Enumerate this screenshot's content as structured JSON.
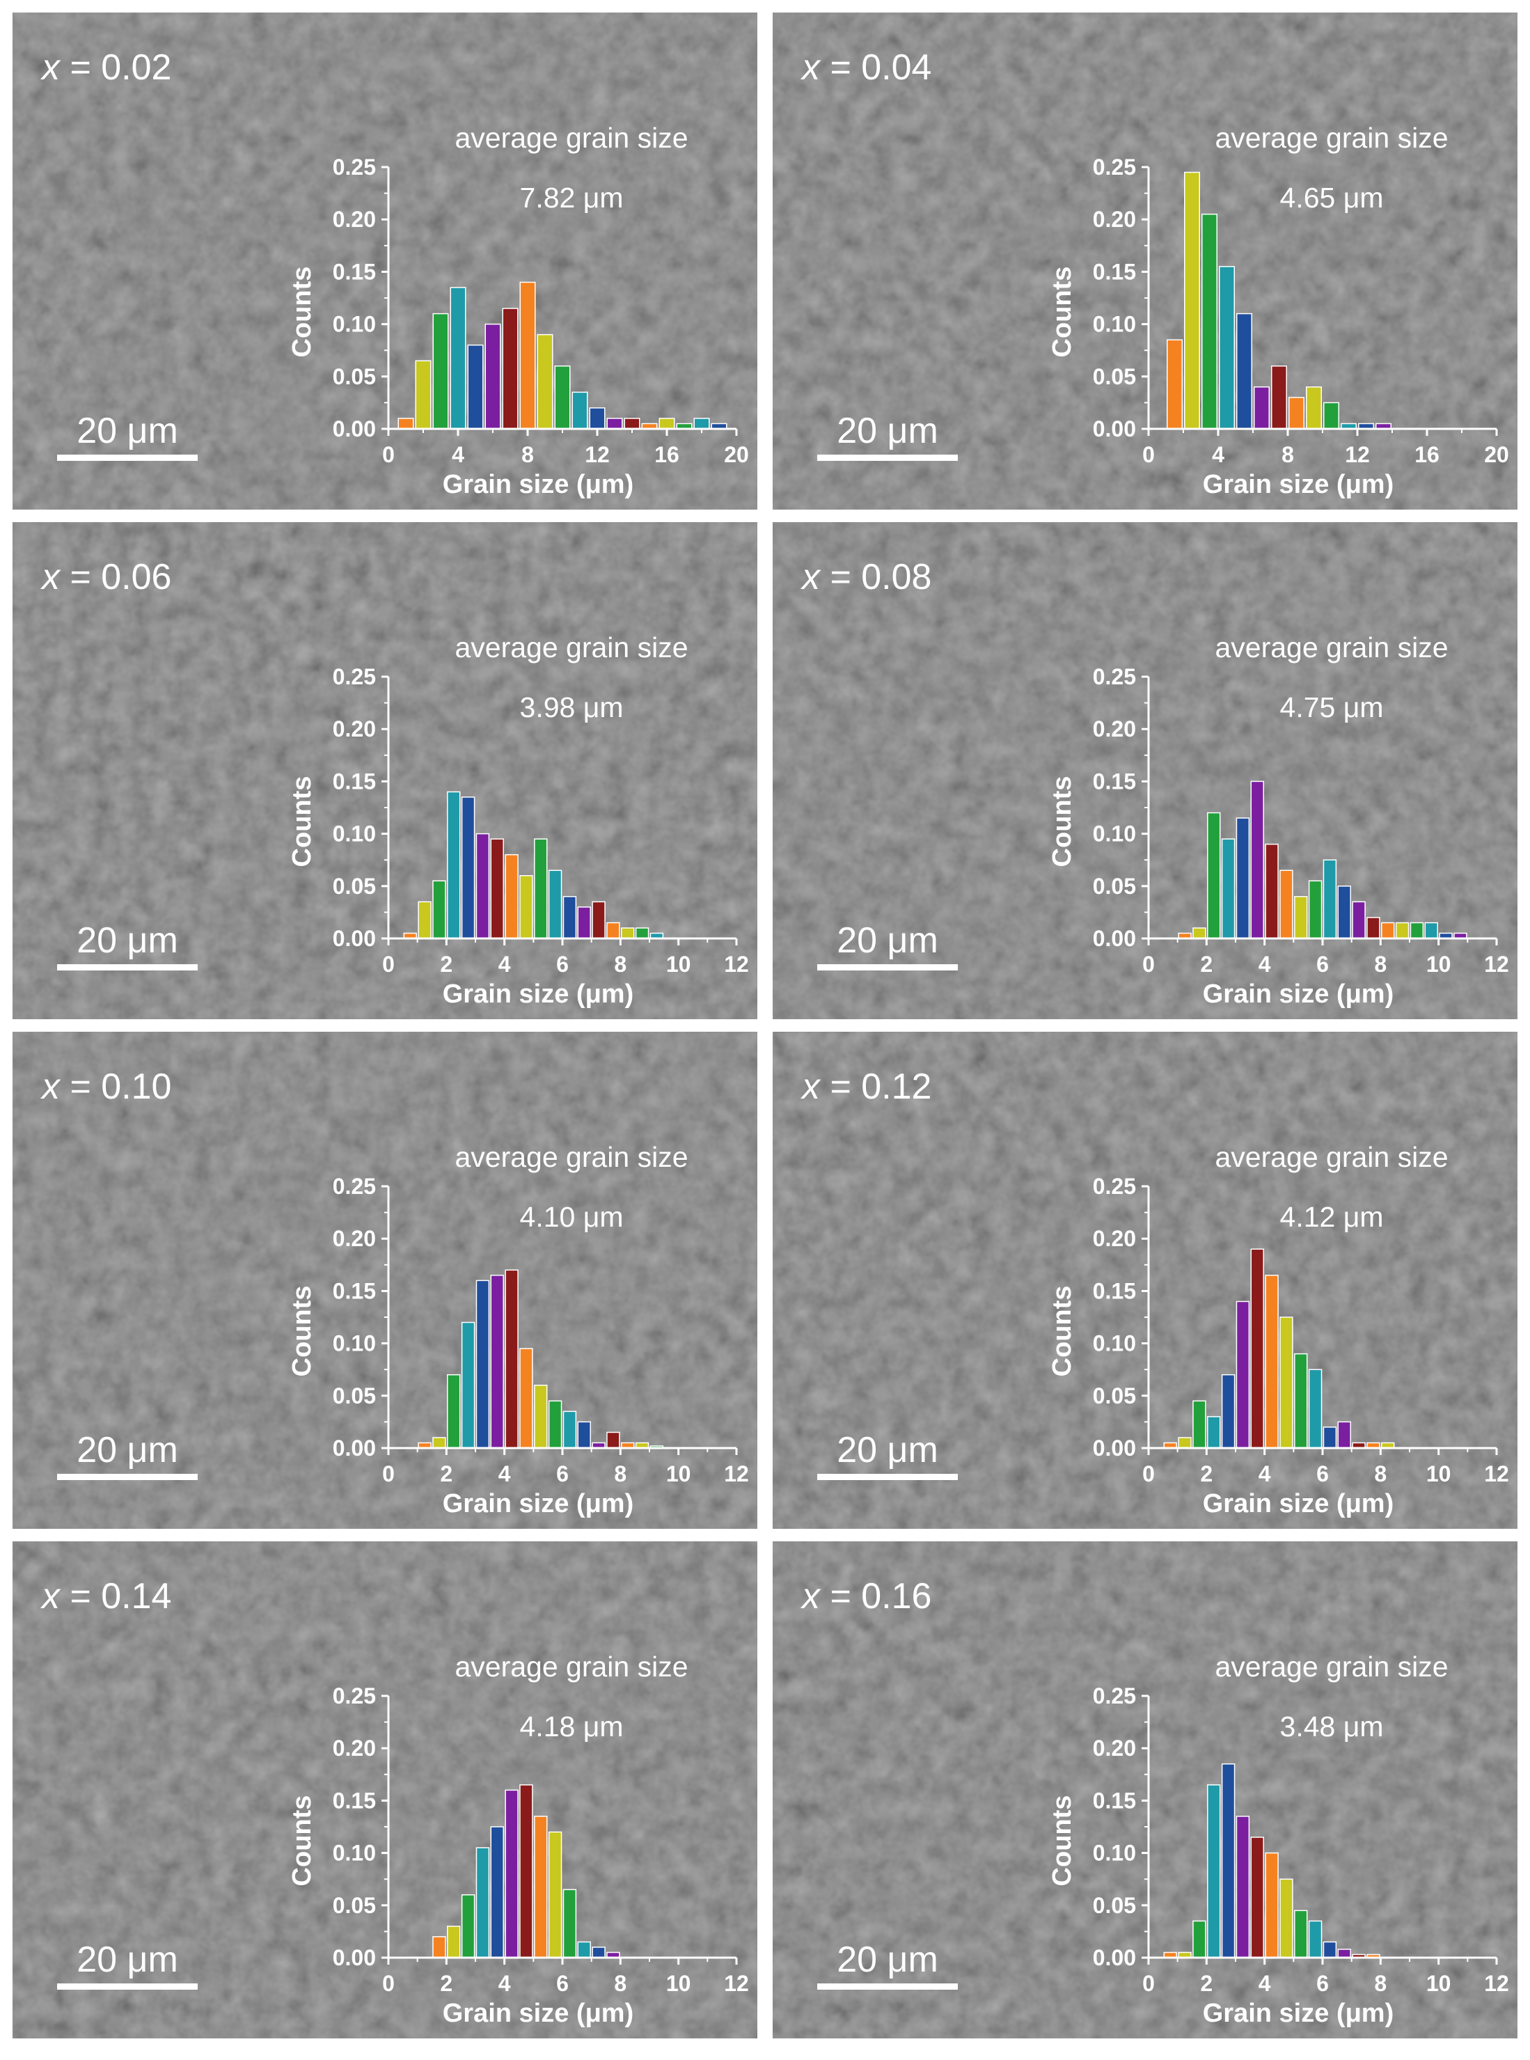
{
  "palette": [
    "#f58220",
    "#c8c81e",
    "#22a03c",
    "#1f9aa8",
    "#1f4e9c",
    "#7b1fa0",
    "#8b1a1a"
  ],
  "scale_bar_label": "20 μm",
  "chart_data": [
    {
      "type": "bar",
      "panel_label": {
        "var": "x",
        "eq": " = 0.02"
      },
      "annotation": {
        "line1": "average grain size",
        "line2": "7.82 μm"
      },
      "xlabel": "Grain size (μm)",
      "ylabel": "Counts",
      "xlim": [
        0,
        20
      ],
      "ylim": [
        0,
        0.25
      ],
      "xticks": [
        "0",
        "4",
        "8",
        "12",
        "16",
        "20"
      ],
      "yticks": [
        "0.00",
        "0.05",
        "0.10",
        "0.15",
        "0.20",
        "0.25"
      ],
      "bin_width": 1,
      "x": [
        1,
        2,
        3,
        4,
        5,
        6,
        7,
        8,
        9,
        10,
        11,
        12,
        13,
        14,
        15,
        16,
        17,
        18,
        19
      ],
      "values": [
        0.01,
        0.065,
        0.11,
        0.135,
        0.08,
        0.1,
        0.115,
        0.14,
        0.09,
        0.06,
        0.035,
        0.02,
        0.01,
        0.01,
        0.005,
        0.01,
        0.005,
        0.01,
        0.005
      ]
    },
    {
      "type": "bar",
      "panel_label": {
        "var": "x",
        "eq": " = 0.04"
      },
      "annotation": {
        "line1": "average grain size",
        "line2": "4.65 μm"
      },
      "xlabel": "Grain size (μm)",
      "ylabel": "Counts",
      "xlim": [
        0,
        20
      ],
      "ylim": [
        0,
        0.25
      ],
      "xticks": [
        "0",
        "4",
        "8",
        "12",
        "16",
        "20"
      ],
      "yticks": [
        "0.00",
        "0.05",
        "0.10",
        "0.15",
        "0.20",
        "0.25"
      ],
      "bin_width": 1,
      "x": [
        1.5,
        2.5,
        3.5,
        4.5,
        5.5,
        6.5,
        7.5,
        8.5,
        9.5,
        10.5,
        11.5,
        12.5,
        13.5
      ],
      "values": [
        0.085,
        0.245,
        0.205,
        0.155,
        0.11,
        0.04,
        0.06,
        0.03,
        0.04,
        0.025,
        0.005,
        0.005,
        0.005
      ]
    },
    {
      "type": "bar",
      "panel_label": {
        "var": "x",
        "eq": " = 0.06"
      },
      "annotation": {
        "line1": "average grain size",
        "line2": "3.98 μm"
      },
      "xlabel": "Grain size (μm)",
      "ylabel": "Counts",
      "xlim": [
        0,
        12
      ],
      "ylim": [
        0,
        0.25
      ],
      "xticks": [
        "0",
        "2",
        "4",
        "6",
        "8",
        "10",
        "12"
      ],
      "yticks": [
        "0.00",
        "0.05",
        "0.10",
        "0.15",
        "0.20",
        "0.25"
      ],
      "bin_width": 0.5,
      "x": [
        0.75,
        1.25,
        1.75,
        2.25,
        2.75,
        3.25,
        3.75,
        4.25,
        4.75,
        5.25,
        5.75,
        6.25,
        6.75,
        7.25,
        7.75,
        8.25,
        8.75,
        9.25
      ],
      "values": [
        0.005,
        0.035,
        0.055,
        0.14,
        0.135,
        0.1,
        0.095,
        0.08,
        0.06,
        0.095,
        0.065,
        0.04,
        0.03,
        0.035,
        0.015,
        0.01,
        0.01,
        0.005
      ]
    },
    {
      "type": "bar",
      "panel_label": {
        "var": "x",
        "eq": " = 0.08"
      },
      "annotation": {
        "line1": "average grain size",
        "line2": "4.75 μm"
      },
      "xlabel": "Grain size (μm)",
      "ylabel": "Counts",
      "xlim": [
        0,
        12
      ],
      "ylim": [
        0,
        0.25
      ],
      "xticks": [
        "0",
        "2",
        "4",
        "6",
        "8",
        "10",
        "12"
      ],
      "yticks": [
        "0.00",
        "0.05",
        "0.10",
        "0.15",
        "0.20",
        "0.25"
      ],
      "bin_width": 0.5,
      "x": [
        1.25,
        1.75,
        2.25,
        2.75,
        3.25,
        3.75,
        4.25,
        4.75,
        5.25,
        5.75,
        6.25,
        6.75,
        7.25,
        7.75,
        8.25,
        8.75,
        9.25,
        9.75,
        10.25,
        10.75
      ],
      "values": [
        0.005,
        0.01,
        0.12,
        0.095,
        0.115,
        0.15,
        0.09,
        0.065,
        0.04,
        0.055,
        0.075,
        0.05,
        0.035,
        0.02,
        0.015,
        0.015,
        0.015,
        0.015,
        0.005,
        0.005
      ]
    },
    {
      "type": "bar",
      "panel_label": {
        "var": "x",
        "eq": " = 0.10"
      },
      "annotation": {
        "line1": "average grain size",
        "line2": "4.10 μm"
      },
      "xlabel": "Grain size (μm)",
      "ylabel": "Counts",
      "xlim": [
        0,
        12
      ],
      "ylim": [
        0,
        0.25
      ],
      "xticks": [
        "0",
        "2",
        "4",
        "6",
        "8",
        "10",
        "12"
      ],
      "yticks": [
        "0.00",
        "0.05",
        "0.10",
        "0.15",
        "0.20",
        "0.25"
      ],
      "bin_width": 0.5,
      "x": [
        1.25,
        1.75,
        2.25,
        2.75,
        3.25,
        3.75,
        4.25,
        4.75,
        5.25,
        5.75,
        6.25,
        6.75,
        7.25,
        7.75,
        8.25,
        8.75,
        9.25
      ],
      "values": [
        0.005,
        0.01,
        0.07,
        0.12,
        0.16,
        0.165,
        0.17,
        0.095,
        0.06,
        0.045,
        0.035,
        0.025,
        0.005,
        0.015,
        0.005,
        0.005,
        0.002
      ]
    },
    {
      "type": "bar",
      "panel_label": {
        "var": "x",
        "eq": " = 0.12"
      },
      "annotation": {
        "line1": "average grain size",
        "line2": "4.12 μm"
      },
      "xlabel": "Grain size (μm)",
      "ylabel": "Counts",
      "xlim": [
        0,
        12
      ],
      "ylim": [
        0,
        0.25
      ],
      "xticks": [
        "0",
        "2",
        "4",
        "6",
        "8",
        "10",
        "12"
      ],
      "yticks": [
        "0.00",
        "0.05",
        "0.10",
        "0.15",
        "0.20",
        "0.25"
      ],
      "bin_width": 0.5,
      "x": [
        0.75,
        1.25,
        1.75,
        2.25,
        2.75,
        3.25,
        3.75,
        4.25,
        4.75,
        5.25,
        5.75,
        6.25,
        6.75,
        7.25,
        7.75,
        8.25
      ],
      "values": [
        0.005,
        0.01,
        0.045,
        0.03,
        0.07,
        0.14,
        0.19,
        0.165,
        0.125,
        0.09,
        0.075,
        0.02,
        0.025,
        0.005,
        0.005,
        0.005
      ]
    },
    {
      "type": "bar",
      "panel_label": {
        "var": "x",
        "eq": " = 0.14"
      },
      "annotation": {
        "line1": "average grain size",
        "line2": "4.18 μm"
      },
      "xlabel": "Grain size (μm)",
      "ylabel": "Counts",
      "xlim": [
        0,
        12
      ],
      "ylim": [
        0,
        0.25
      ],
      "xticks": [
        "0",
        "2",
        "4",
        "6",
        "8",
        "10",
        "12"
      ],
      "yticks": [
        "0.00",
        "0.05",
        "0.10",
        "0.15",
        "0.20",
        "0.25"
      ],
      "bin_width": 0.5,
      "x": [
        1.75,
        2.25,
        2.75,
        3.25,
        3.75,
        4.25,
        4.75,
        5.25,
        5.75,
        6.25,
        6.75,
        7.25,
        7.75
      ],
      "values": [
        0.02,
        0.03,
        0.06,
        0.105,
        0.125,
        0.16,
        0.165,
        0.135,
        0.12,
        0.065,
        0.015,
        0.01,
        0.005
      ]
    },
    {
      "type": "bar",
      "panel_label": {
        "var": "x",
        "eq": " = 0.16"
      },
      "annotation": {
        "line1": "average grain size",
        "line2": "3.48 μm"
      },
      "xlabel": "Grain size (μm)",
      "ylabel": "Counts",
      "xlim": [
        0,
        12
      ],
      "ylim": [
        0,
        0.25
      ],
      "xticks": [
        "0",
        "2",
        "4",
        "6",
        "8",
        "10",
        "12"
      ],
      "yticks": [
        "0.00",
        "0.05",
        "0.10",
        "0.15",
        "0.20",
        "0.25"
      ],
      "bin_width": 0.5,
      "x": [
        0.75,
        1.25,
        1.75,
        2.25,
        2.75,
        3.25,
        3.75,
        4.25,
        4.75,
        5.25,
        5.75,
        6.25,
        6.75,
        7.25,
        7.75
      ],
      "values": [
        0.005,
        0.005,
        0.035,
        0.165,
        0.185,
        0.135,
        0.115,
        0.1,
        0.075,
        0.045,
        0.035,
        0.015,
        0.008,
        0.003,
        0.003
      ]
    }
  ]
}
